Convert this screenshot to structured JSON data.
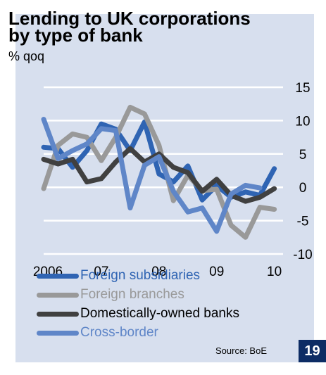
{
  "title": "Lending to UK corporations\nby type of bank",
  "unit_label": "% qoq",
  "source": "Source: BoE",
  "page_number": "19",
  "chart_data": {
    "type": "line",
    "title": "Lending to UK corporations by type of bank",
    "ylabel": "% qoq",
    "xlabel": "",
    "x_tick_labels": [
      "2006",
      "07",
      "08",
      "09",
      "10"
    ],
    "x_ticks": [
      2006,
      2007,
      2008,
      2009,
      2010
    ],
    "y_ticks": [
      15,
      10,
      5,
      0,
      -5,
      -10
    ],
    "ylim": [
      -10,
      15
    ],
    "xlim": [
      2006,
      2010.2
    ],
    "y_axis_position": "right",
    "grid": "horizontal",
    "legend_position": "bottom",
    "x": [
      2006.0,
      2006.25,
      2006.5,
      2006.75,
      2007.0,
      2007.25,
      2007.5,
      2007.75,
      2008.0,
      2008.25,
      2008.5,
      2008.75,
      2009.0,
      2009.25,
      2009.5,
      2009.75,
      2010.0
    ],
    "series": [
      {
        "name": "Foreign subsidiaries",
        "color": "#2f64b3",
        "values": [
          6.0,
          5.8,
          3.0,
          5.5,
          9.5,
          8.7,
          5.5,
          9.8,
          2.0,
          0.8,
          3.2,
          -1.9,
          0.3,
          -1.5,
          -0.7,
          -1.2,
          2.8
        ]
      },
      {
        "name": "Foreign branches",
        "color": "#999999",
        "values": [
          -0.2,
          6.3,
          8.0,
          7.5,
          4.0,
          7.5,
          12.0,
          11.0,
          6.3,
          -2.0,
          1.8,
          -0.5,
          -0.3,
          -5.7,
          -7.5,
          -3.0,
          -3.3
        ]
      },
      {
        "name": "Domestically-owned banks",
        "color": "#404040",
        "values": [
          4.2,
          3.5,
          4.2,
          0.8,
          1.3,
          3.8,
          5.8,
          3.8,
          5.0,
          3.0,
          2.2,
          -0.6,
          1.2,
          -1.2,
          -2.1,
          -1.5,
          -0.2
        ]
      },
      {
        "name": "Cross-border",
        "color": "#5f86c8",
        "values": [
          10.2,
          4.3,
          5.5,
          6.5,
          8.8,
          8.5,
          -3.1,
          3.3,
          4.6,
          -0.6,
          -3.7,
          -3.1,
          -6.6,
          -1.0,
          0.3,
          -0.1,
          null
        ]
      }
    ]
  }
}
